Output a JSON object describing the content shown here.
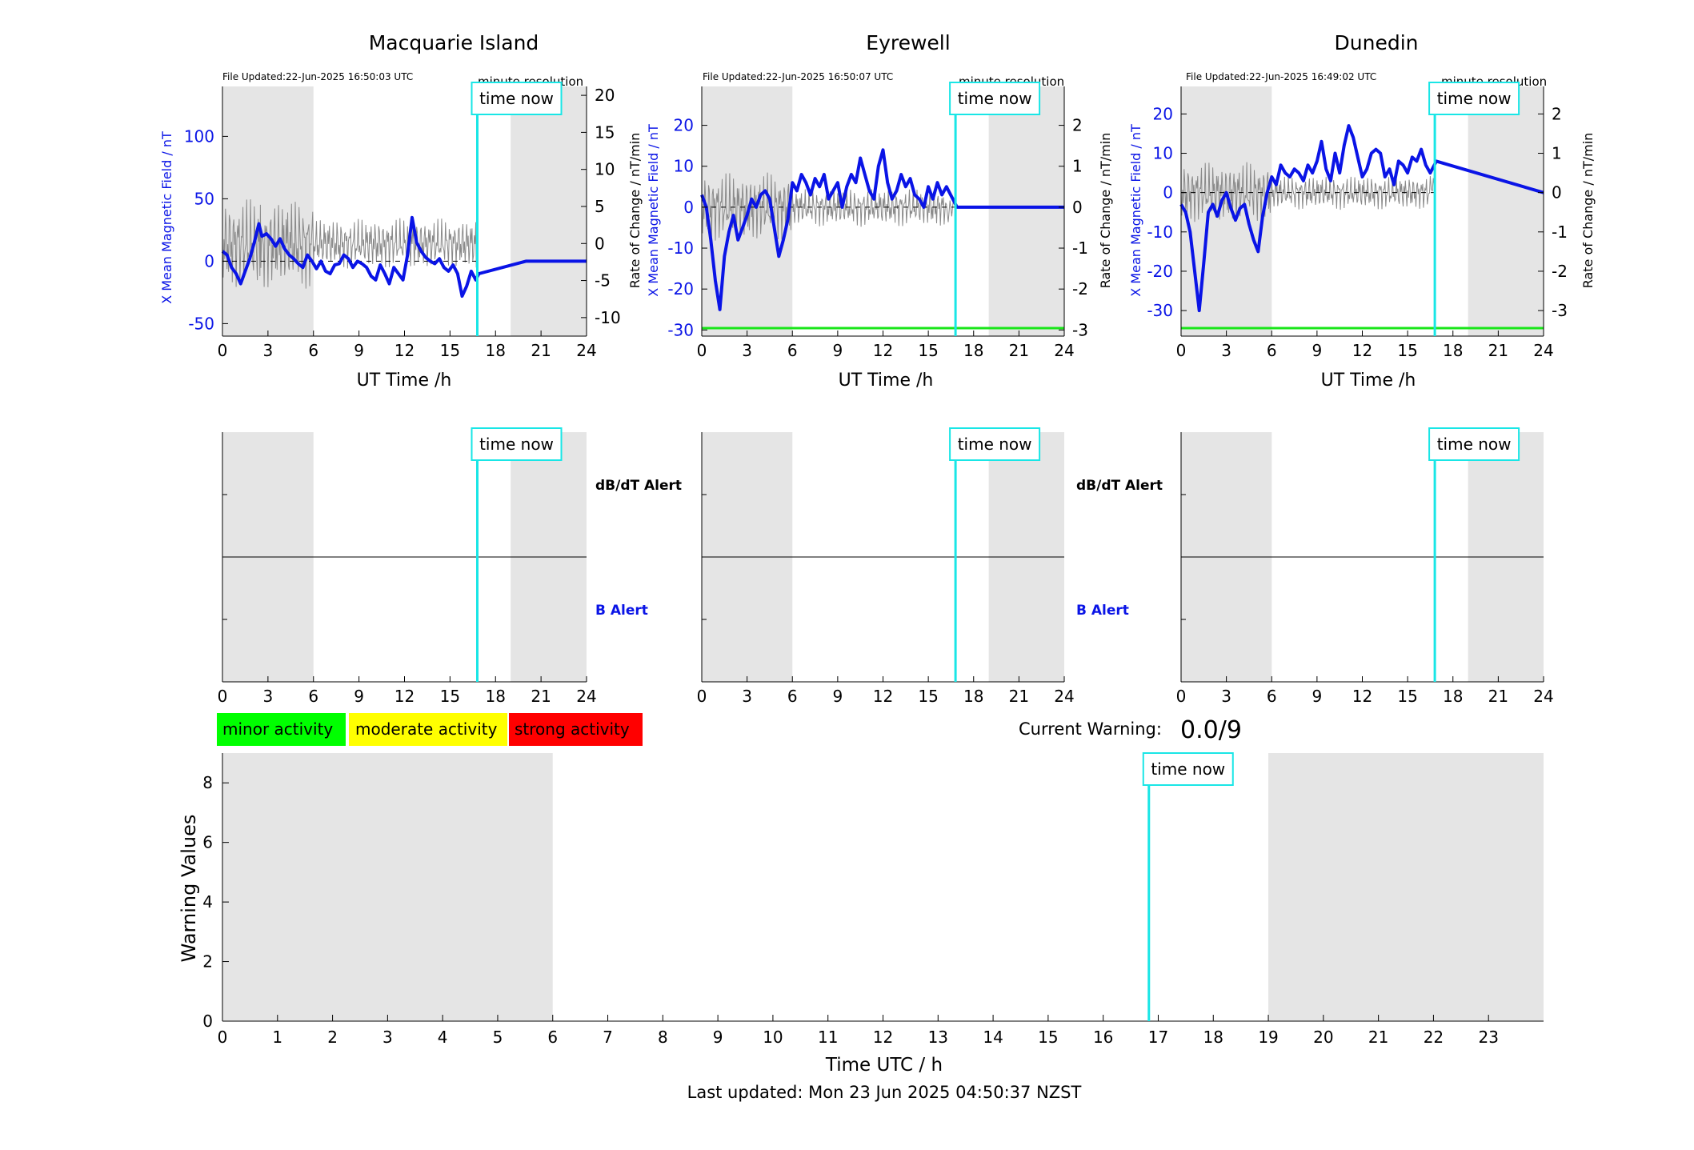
{
  "colors": {
    "field_line": "#0a14e6",
    "rate_line": "#8a8a8a",
    "now_line": "#19e6e6",
    "night_shade": "#e5e5e5",
    "baseline_green": "#19e619",
    "minor": "#00ff00",
    "moderate": "#ffff00",
    "strong": "#ff0000"
  },
  "labels": {
    "time_now": "time now",
    "minute_resolution": "minute resolution",
    "xlabel_station": "UT Time /h",
    "ylabel_left": "X Mean Magnetic Field / nT",
    "ylabel_right": "Rate of Change / nT/min",
    "dbdt_alert": "dB/dT Alert",
    "b_alert": "B Alert",
    "current_warning_label": "Current Warning:",
    "current_warning_value": "0.0/9",
    "warning_ylabel": "Warning Values",
    "warning_xlabel": "Time UTC / h",
    "last_updated": "Last updated: Mon 23 Jun 2025 04:50:37 NZST"
  },
  "legend": [
    "minor activity",
    "moderate activity",
    "strong activity"
  ],
  "chart_data": [
    {
      "type": "line",
      "title": "Macquarie Island",
      "file_updated": "File Updated:22-Jun-2025 16:50:03 UTC",
      "xlabel": "UT Time /h",
      "ylabel": "X Mean Magnetic Field / nT",
      "ylabel_right": "Rate of Change / nT/min",
      "xlim": [
        0,
        24
      ],
      "xticks": [
        0,
        3,
        6,
        9,
        12,
        15,
        18,
        21,
        24
      ],
      "ylim": [
        -60,
        140
      ],
      "yticks": [
        -50,
        0,
        50,
        100
      ],
      "ylim_right": [
        -12.5,
        21.2
      ],
      "yticks_right": [
        -10,
        -5,
        0,
        5,
        10,
        15,
        20
      ],
      "shaded_hours": [
        [
          0,
          6
        ],
        [
          19,
          24
        ]
      ],
      "time_now": 16.8,
      "series": [
        {
          "x": [
            0,
            0.3,
            0.6,
            0.9,
            1.2,
            1.5,
            1.8,
            2.1,
            2.4,
            2.6,
            2.9,
            3.2,
            3.5,
            3.8,
            4.1,
            4.4,
            4.7,
            5.0,
            5.3,
            5.6,
            5.9,
            6.2,
            6.5,
            6.8,
            7.1,
            7.4,
            7.7,
            8.0,
            8.3,
            8.6,
            8.9,
            9.2,
            9.5,
            9.8,
            10.1,
            10.4,
            10.7,
            11.0,
            11.3,
            11.6,
            11.9,
            12.2,
            12.5,
            12.8,
            13.1,
            13.4,
            13.7,
            14.0,
            14.3,
            14.6,
            14.9,
            15.2,
            15.5,
            15.8,
            16.1,
            16.4,
            16.7,
            16.9,
            20,
            24
          ],
          "values": [
            8,
            5,
            -5,
            -10,
            -18,
            -8,
            2,
            15,
            30,
            20,
            22,
            18,
            12,
            18,
            10,
            5,
            2,
            -2,
            -5,
            5,
            0,
            -6,
            0,
            -8,
            -10,
            -3,
            -2,
            5,
            2,
            -5,
            0,
            -2,
            -5,
            -12,
            -15,
            -3,
            -10,
            -18,
            -5,
            -10,
            -15,
            5,
            35,
            15,
            8,
            3,
            0,
            -2,
            2,
            -5,
            -8,
            -3,
            -10,
            -28,
            -20,
            -8,
            -15,
            -10,
            0,
            0
          ]
        }
      ]
    },
    {
      "type": "line",
      "title": "Eyrewell",
      "file_updated": "File Updated:22-Jun-2025 16:50:07 UTC",
      "xlabel": "UT Time /h",
      "ylabel": "X Mean Magnetic Field / nT",
      "ylabel_right": "Rate of Change / nT/min",
      "xlim": [
        0,
        24
      ],
      "xticks": [
        0,
        3,
        6,
        9,
        12,
        15,
        18,
        21,
        24
      ],
      "ylim": [
        -31.5,
        29.5
      ],
      "yticks": [
        -30,
        -20,
        -10,
        0,
        10,
        20
      ],
      "ylim_right": [
        -3.15,
        2.95
      ],
      "yticks_right": [
        -3,
        -2,
        -1,
        0,
        1,
        2
      ],
      "shaded_hours": [
        [
          0,
          6
        ],
        [
          19,
          24
        ]
      ],
      "time_now": 16.8,
      "series": [
        {
          "x": [
            0,
            0.3,
            0.6,
            0.9,
            1.2,
            1.5,
            1.8,
            2.1,
            2.4,
            2.7,
            3.0,
            3.3,
            3.6,
            3.9,
            4.2,
            4.5,
            4.8,
            5.1,
            5.4,
            5.7,
            6.0,
            6.3,
            6.6,
            6.9,
            7.2,
            7.5,
            7.8,
            8.1,
            8.4,
            8.7,
            9.0,
            9.3,
            9.6,
            9.9,
            10.2,
            10.5,
            10.8,
            11.1,
            11.4,
            11.7,
            12.0,
            12.3,
            12.6,
            12.9,
            13.2,
            13.5,
            13.8,
            14.1,
            14.4,
            14.7,
            15.0,
            15.3,
            15.6,
            15.9,
            16.2,
            16.9,
            24
          ],
          "values": [
            3,
            0,
            -8,
            -18,
            -25,
            -12,
            -6,
            -2,
            -8,
            -5,
            -2,
            2,
            0,
            3,
            4,
            2,
            -5,
            -12,
            -8,
            -3,
            6,
            4,
            8,
            6,
            3,
            7,
            5,
            8,
            2,
            4,
            6,
            0,
            5,
            8,
            6,
            12,
            8,
            4,
            2,
            10,
            14,
            6,
            2,
            4,
            8,
            5,
            7,
            3,
            2,
            0,
            5,
            2,
            6,
            3,
            5,
            0,
            0
          ]
        }
      ]
    },
    {
      "type": "line",
      "title": "Dunedin",
      "file_updated": "File Updated:22-Jun-2025 16:49:02 UTC",
      "xlabel": "UT Time /h",
      "ylabel": "X Mean Magnetic Field / nT",
      "ylabel_right": "Rate of Change / nT/min",
      "xlim": [
        0,
        24
      ],
      "xticks": [
        0,
        3,
        6,
        9,
        12,
        15,
        18,
        21,
        24
      ],
      "ylim": [
        -36.5,
        27
      ],
      "yticks": [
        -30,
        -20,
        -10,
        0,
        10,
        20
      ],
      "ylim_right": [
        -3.65,
        2.7
      ],
      "yticks_right": [
        -3,
        -2,
        -1,
        0,
        1,
        2
      ],
      "shaded_hours": [
        [
          0,
          6
        ],
        [
          19,
          24
        ]
      ],
      "time_now": 16.8,
      "series": [
        {
          "x": [
            0,
            0.3,
            0.6,
            0.9,
            1.2,
            1.5,
            1.8,
            2.1,
            2.4,
            2.7,
            3.0,
            3.3,
            3.6,
            3.9,
            4.2,
            4.5,
            4.8,
            5.1,
            5.4,
            5.7,
            6.0,
            6.3,
            6.6,
            6.9,
            7.2,
            7.5,
            7.8,
            8.1,
            8.4,
            8.7,
            9.0,
            9.3,
            9.6,
            9.9,
            10.2,
            10.5,
            10.8,
            11.1,
            11.4,
            11.7,
            12.0,
            12.3,
            12.6,
            12.9,
            13.2,
            13.5,
            13.8,
            14.1,
            14.4,
            14.7,
            15.0,
            15.3,
            15.6,
            15.9,
            16.2,
            16.5,
            16.9,
            24
          ],
          "values": [
            -3,
            -5,
            -10,
            -20,
            -30,
            -18,
            -5,
            -3,
            -6,
            -2,
            0,
            -4,
            -7,
            -4,
            -3,
            -8,
            -12,
            -15,
            -6,
            0,
            4,
            2,
            7,
            5,
            4,
            6,
            5,
            3,
            7,
            5,
            8,
            13,
            6,
            3,
            10,
            5,
            12,
            17,
            14,
            9,
            4,
            6,
            10,
            11,
            10,
            4,
            6,
            2,
            8,
            7,
            5,
            9,
            8,
            11,
            7,
            5,
            8,
            0
          ]
        }
      ]
    },
    {
      "type": "line",
      "title": "",
      "xlabel": "Time UTC / h",
      "ylabel": "Warning Values",
      "xlim": [
        0,
        24
      ],
      "xticks": [
        0,
        1,
        2,
        3,
        4,
        5,
        6,
        7,
        8,
        9,
        10,
        11,
        12,
        13,
        14,
        15,
        16,
        17,
        18,
        19,
        20,
        21,
        22,
        23
      ],
      "ylim": [
        0,
        9
      ],
      "yticks": [
        0,
        2,
        4,
        6,
        8
      ],
      "shaded_hours": [
        [
          0,
          6
        ],
        [
          19,
          24
        ]
      ],
      "time_now": 16.83,
      "series": []
    }
  ]
}
